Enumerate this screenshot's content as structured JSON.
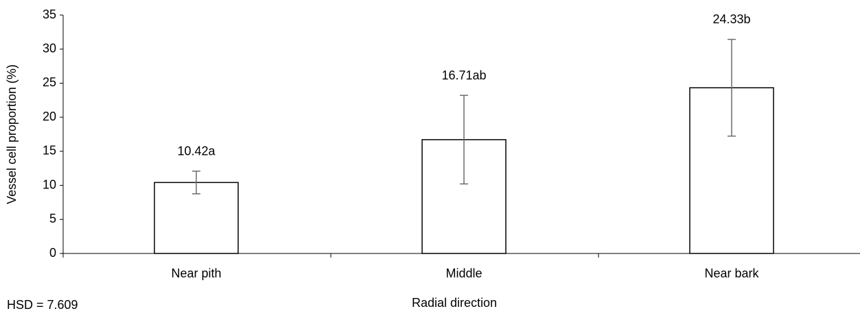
{
  "chart_data": {
    "type": "bar",
    "categories": [
      "Near pith",
      "Middle",
      "Near bark"
    ],
    "values": [
      10.42,
      16.71,
      24.33
    ],
    "value_labels": [
      "10.42a",
      "16.71ab",
      "24.33b"
    ],
    "errors": [
      1.66,
      6.5,
      7.1
    ],
    "color": "#ffffff",
    "ylim": [
      0,
      35
    ],
    "yticks": [
      0,
      5,
      10,
      15,
      20,
      25,
      30,
      35
    ],
    "xlabel": "Radial direction",
    "ylabel": "Vessel cell proportion (%)",
    "annotation": "HSD = 7.609"
  }
}
